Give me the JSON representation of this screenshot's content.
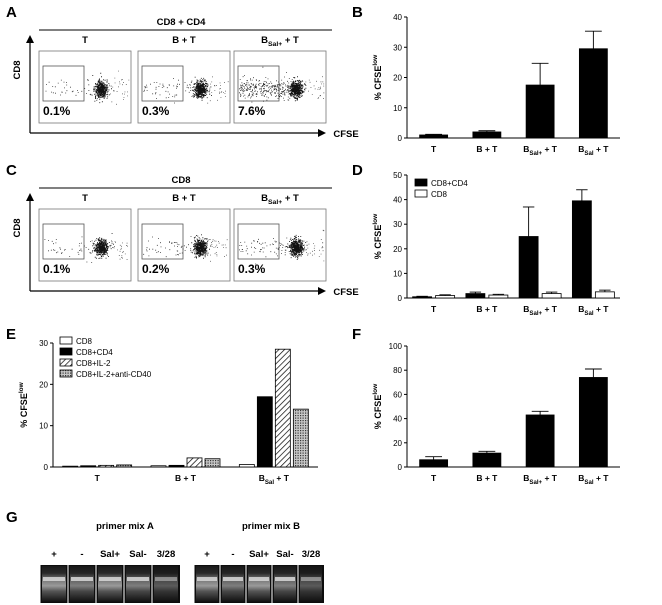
{
  "panels": {
    "A": "A",
    "B": "B",
    "C": "C",
    "D": "D",
    "E": "E",
    "F": "F",
    "G": "G"
  },
  "flow": {
    "A": {
      "header": "CD8 + CD4",
      "xlabel": "CFSE",
      "ylabel": "CD8",
      "plots": [
        {
          "label": "T",
          "sub": "",
          "pct": "0.1%",
          "spread": 0.05
        },
        {
          "label": "B + T",
          "sub": "",
          "pct": "0.3%",
          "spread": 0.12
        },
        {
          "label": "B",
          "sub": "Sal+",
          "suffix": " + T",
          "pct": "7.6%",
          "spread": 0.9
        }
      ]
    },
    "C": {
      "header": "CD8",
      "xlabel": "CFSE",
      "ylabel": "CD8",
      "plots": [
        {
          "label": "T",
          "sub": "",
          "pct": "0.1%",
          "spread": 0.05
        },
        {
          "label": "B + T",
          "sub": "",
          "pct": "0.2%",
          "spread": 0.1
        },
        {
          "label": "B",
          "sub": "Sal+",
          "suffix": " + T",
          "pct": "0.3%",
          "spread": 0.15
        }
      ]
    }
  },
  "chart_data": [
    {
      "id": "B",
      "type": "bar",
      "ylabel": "% CFSE",
      "ylabel_sup": "low",
      "ylim": [
        0,
        40
      ],
      "yticks": [
        0,
        10,
        20,
        30,
        40
      ],
      "categories": [
        {
          "main": "T",
          "sub": "",
          "tail": ""
        },
        {
          "main": "B + T",
          "sub": "",
          "tail": ""
        },
        {
          "main": "B",
          "sub": "Sal+",
          "tail": " + T"
        },
        {
          "main": "B",
          "sub": "Sal",
          "tail": " + T"
        }
      ],
      "series": [
        {
          "name": "",
          "color": "#000",
          "values": [
            1,
            2,
            17.5,
            29.5
          ],
          "errors": [
            0.2,
            0.4,
            7.2,
            5.8
          ]
        }
      ]
    },
    {
      "id": "D",
      "type": "bar",
      "ylabel": "% CFSE",
      "ylabel_sup": "low",
      "ylim": [
        0,
        50
      ],
      "yticks": [
        0,
        10,
        20,
        30,
        40,
        50
      ],
      "categories": [
        {
          "main": "T",
          "sub": "",
          "tail": ""
        },
        {
          "main": "B + T",
          "sub": "",
          "tail": ""
        },
        {
          "main": "B",
          "sub": "Sal+",
          "tail": " + T"
        },
        {
          "main": "B",
          "sub": "Sal",
          "tail": " + T"
        }
      ],
      "series": [
        {
          "name": "CD8+CD4",
          "color": "#000",
          "values": [
            0.5,
            1.8,
            25,
            39.5
          ],
          "errors": [
            0.2,
            0.6,
            12,
            4.5
          ]
        },
        {
          "name": "CD8",
          "color": "#fff",
          "values": [
            1,
            1.2,
            1.8,
            2.5
          ],
          "errors": [
            0.3,
            0.3,
            0.6,
            0.7
          ]
        }
      ]
    },
    {
      "id": "E",
      "type": "bar",
      "ylabel": "% CFSE",
      "ylabel_sup": "low",
      "ylim": [
        0,
        30
      ],
      "yticks": [
        0,
        10,
        20,
        30
      ],
      "categories": [
        {
          "main": "T",
          "sub": "",
          "tail": ""
        },
        {
          "main": "B + T",
          "sub": "",
          "tail": ""
        },
        {
          "main": "B",
          "sub": "Sal",
          "tail": " + T"
        }
      ],
      "series": [
        {
          "name": "CD8",
          "pattern": "white",
          "values": [
            0.2,
            0.3,
            0.6
          ]
        },
        {
          "name": "CD8+CD4",
          "pattern": "black",
          "values": [
            0.3,
            0.4,
            17
          ]
        },
        {
          "name": "CD8+IL-2",
          "pattern": "hatch",
          "values": [
            0.4,
            2.2,
            28.5
          ]
        },
        {
          "name": "CD8+IL-2+anti-CD40",
          "pattern": "dots",
          "values": [
            0.5,
            2,
            14
          ]
        }
      ]
    },
    {
      "id": "F",
      "type": "bar",
      "ylabel": "% CFSE",
      "ylabel_sup": "low",
      "ylim": [
        0,
        100
      ],
      "yticks": [
        0,
        20,
        40,
        60,
        80,
        100
      ],
      "categories": [
        {
          "main": "T",
          "sub": "",
          "tail": ""
        },
        {
          "main": "B + T",
          "sub": "",
          "tail": ""
        },
        {
          "main": "B",
          "sub": "Sal+",
          "tail": " + T"
        },
        {
          "main": "B",
          "sub": "Sal",
          "tail": " + T"
        }
      ],
      "series": [
        {
          "name": "",
          "color": "#000",
          "values": [
            6,
            11.5,
            43,
            74
          ],
          "errors": [
            2.5,
            1.5,
            3,
            7
          ]
        }
      ]
    }
  ],
  "gel": {
    "groups": [
      {
        "title": "primer mix A",
        "lanes": [
          "+",
          "-",
          "Sal+",
          "Sal-",
          "3/28"
        ]
      },
      {
        "title": "primer mix B",
        "lanes": [
          "+",
          "-",
          "Sal+",
          "Sal-",
          "3/28"
        ]
      }
    ]
  }
}
